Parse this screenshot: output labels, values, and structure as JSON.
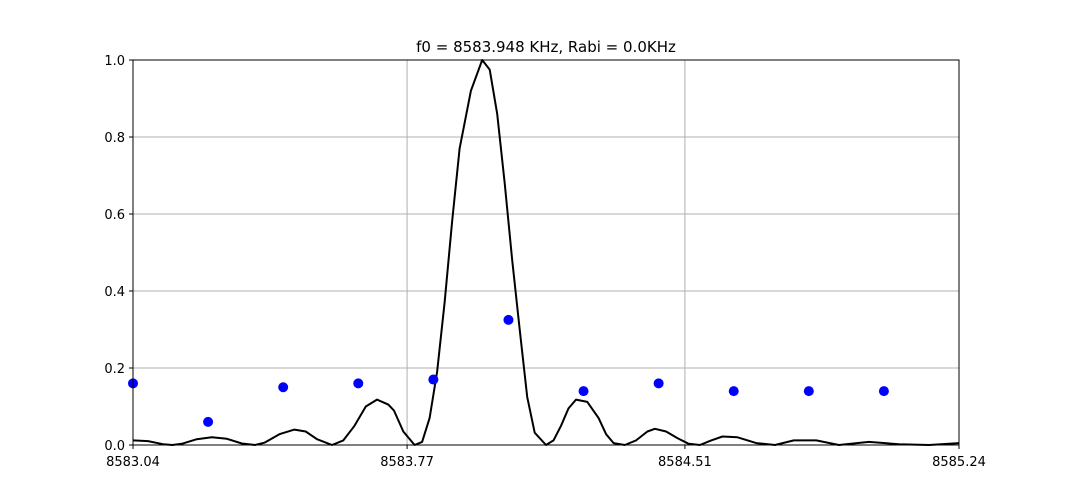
{
  "chart_data": {
    "type": "scatter",
    "title": "f0 = 8583.948 KHz, Rabi = 0.0KHz",
    "xlabel": "",
    "ylabel": "",
    "xlim": [
      8583.04,
      8585.24
    ],
    "ylim": [
      0,
      1.0
    ],
    "grid": true,
    "x_ticks": [
      8583.04,
      8583.77,
      8584.51,
      8585.24
    ],
    "x_tick_labels": [
      "8583.04",
      "8583.77",
      "8584.51",
      "8585.24"
    ],
    "y_ticks": [
      0.0,
      0.2,
      0.4,
      0.6,
      0.8,
      1.0
    ],
    "y_tick_labels": [
      "0.0",
      "0.2",
      "0.4",
      "0.6",
      "0.8",
      "1.0"
    ],
    "colors": {
      "points": "#0000ff",
      "curve": "#000000",
      "grid": "#b0b0b0"
    },
    "series": [
      {
        "kind": "points",
        "x": [
          8583.04,
          8583.24,
          8583.44,
          8583.64,
          8583.84,
          8584.04,
          8584.24,
          8584.44,
          8584.64,
          8584.84,
          8585.04
        ],
        "y": [
          0.16,
          0.06,
          0.15,
          0.16,
          0.17,
          0.325,
          0.14,
          0.16,
          0.14,
          0.14,
          0.14
        ]
      },
      {
        "kind": "line",
        "x": [
          8583.04,
          8583.08,
          8583.12,
          8583.145,
          8583.17,
          8583.21,
          8583.25,
          8583.29,
          8583.33,
          8583.365,
          8583.39,
          8583.43,
          8583.47,
          8583.5,
          8583.53,
          8583.57,
          8583.6,
          8583.63,
          8583.66,
          8583.69,
          8583.72,
          8583.735,
          8583.76,
          8583.79,
          8583.81,
          8583.83,
          8583.85,
          8583.87,
          8583.89,
          8583.91,
          8583.94,
          8583.97,
          8583.99,
          8584.01,
          8584.03,
          8584.05,
          8584.07,
          8584.09,
          8584.11,
          8584.14,
          8584.16,
          8584.18,
          8584.2,
          8584.22,
          8584.25,
          8584.28,
          8584.3,
          8584.32,
          8584.35,
          8584.38,
          8584.41,
          8584.43,
          8584.46,
          8584.49,
          8584.52,
          8584.55,
          8584.58,
          8584.61,
          8584.65,
          8584.7,
          8584.75,
          8584.8,
          8584.86,
          8584.92,
          8585.0,
          8585.08,
          8585.16,
          8585.24
        ],
        "y": [
          0.012,
          0.01,
          0.002,
          0.0,
          0.003,
          0.015,
          0.02,
          0.016,
          0.004,
          0.0,
          0.006,
          0.028,
          0.04,
          0.035,
          0.015,
          0.0,
          0.012,
          0.05,
          0.1,
          0.118,
          0.105,
          0.09,
          0.035,
          0.0,
          0.008,
          0.07,
          0.19,
          0.37,
          0.58,
          0.77,
          0.92,
          1.0,
          0.975,
          0.86,
          0.68,
          0.48,
          0.3,
          0.125,
          0.032,
          0.0,
          0.012,
          0.05,
          0.095,
          0.118,
          0.112,
          0.07,
          0.028,
          0.005,
          0.0,
          0.012,
          0.035,
          0.042,
          0.035,
          0.018,
          0.003,
          0.0,
          0.012,
          0.022,
          0.02,
          0.005,
          0.0,
          0.012,
          0.012,
          0.0,
          0.008,
          0.002,
          0.0,
          0.005
        ]
      }
    ]
  }
}
